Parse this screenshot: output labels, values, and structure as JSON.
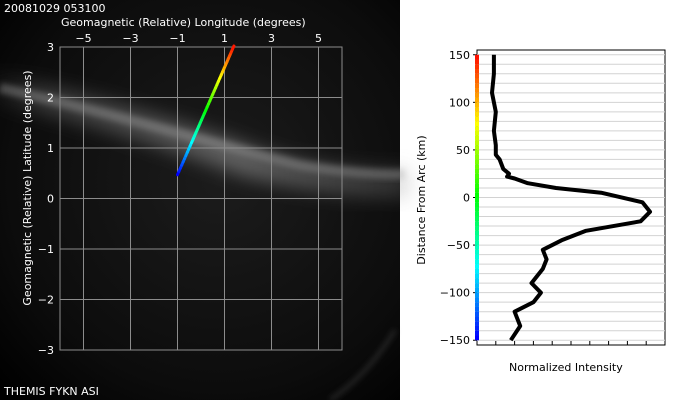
{
  "timestamp": "20081029 053100",
  "instrument_label": "THEMIS FYKN ASI",
  "chart_data": [
    {
      "type": "scatter",
      "title": "",
      "xlabel": "Geomagnetic (Relative) Longitude (degrees)",
      "ylabel": "Geomagnetic (Relative) Latitude (degrees)",
      "xlim": [
        -6,
        6
      ],
      "ylim": [
        -3,
        3
      ],
      "xticks": [
        -5,
        -3,
        -1,
        1,
        3,
        5
      ],
      "xtick_labels": [
        "−5",
        "−3",
        "−1",
        "1",
        "3",
        "5"
      ],
      "yticks": [
        3,
        2,
        1,
        0,
        -1,
        -2,
        -3
      ],
      "ytick_labels": [
        "3",
        "2",
        "1",
        "0",
        "−1",
        "−2",
        "−3"
      ],
      "grid": true,
      "background": "all-sky camera image (dark with diffuse auroral arc)",
      "series": [
        {
          "x": [
            -1.0,
            1.4
          ],
          "y": [
            0.47,
            3.02
          ],
          "style": "rainbow colored line, blue at bottom to red at top"
        }
      ]
    },
    {
      "type": "line",
      "title": "",
      "xlabel": "Normalized Intensity",
      "ylabel": "Distance From Arc (km)",
      "xlim": [
        0,
        1
      ],
      "ylim": [
        -155,
        155
      ],
      "yticks": [
        150,
        100,
        50,
        0,
        -50,
        -100,
        -150
      ],
      "ytick_labels": [
        "150",
        "100",
        "50",
        "0",
        "−50",
        "−100",
        "−150"
      ],
      "grid": true,
      "color_bar": "rainbow along left axis: red at top to blue at bottom",
      "series": [
        {
          "x": [
            0.09,
            0.09,
            0.08,
            0.1,
            0.09,
            0.1,
            0.1,
            0.12,
            0.14,
            0.17,
            0.16,
            0.2,
            0.27,
            0.42,
            0.66,
            0.88,
            0.92,
            0.87,
            0.58,
            0.45,
            0.35,
            0.37,
            0.35,
            0.29,
            0.34,
            0.3,
            0.2,
            0.23,
            0.18
          ],
          "y": [
            150,
            130,
            110,
            90,
            70,
            55,
            45,
            40,
            30,
            25,
            22,
            20,
            15,
            10,
            5,
            -5,
            -15,
            -25,
            -35,
            -45,
            -55,
            -65,
            -75,
            -90,
            -100,
            -110,
            -120,
            -135,
            -150
          ]
        }
      ]
    }
  ]
}
